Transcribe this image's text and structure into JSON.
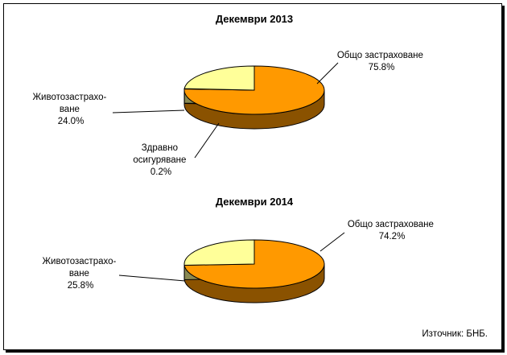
{
  "chart_data": [
    {
      "type": "pie",
      "title": "Декември 2013",
      "slices": [
        {
          "label_lines": [
            "Общо застраховане",
            "75.8%"
          ],
          "value": 75.8,
          "color": "#FF9900",
          "side": "#8A5200"
        },
        {
          "label_lines": [
            "Здравно",
            "осигуряване",
            "0.2%"
          ],
          "value": 0.2,
          "color": "#2B1A00",
          "side": "#000000"
        },
        {
          "label_lines": [
            "Животозастрахо-",
            "ване",
            "24.0%"
          ],
          "value": 24.0,
          "color": "#FFFF99",
          "side": "#8A8A52"
        }
      ]
    },
    {
      "type": "pie",
      "title": "Декември 2014",
      "slices": [
        {
          "label_lines": [
            "Общо застраховане",
            "74.2%"
          ],
          "value": 74.2,
          "color": "#FF9900",
          "side": "#8A5200"
        },
        {
          "label_lines": [
            "Животозастрахо-",
            "ване",
            "25.8%"
          ],
          "value": 25.8,
          "color": "#FFFF99",
          "side": "#8A8A52"
        }
      ]
    }
  ],
  "source_note": "Източник: БНБ."
}
